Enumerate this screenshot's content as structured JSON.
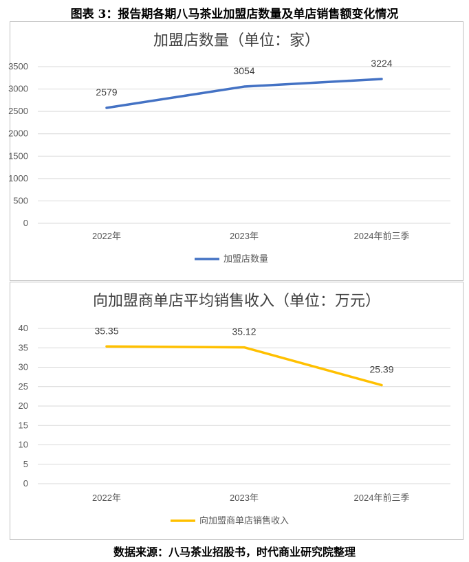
{
  "figure_title": "图表 3：报告期各期八马茶业加盟店数量及单店销售额变化情况",
  "source": "数据来源：八马茶业招股书，时代商业研究院整理",
  "chart_data": [
    {
      "type": "line",
      "title": "加盟店数量（单位：家）",
      "categories": [
        "2022年",
        "2023年",
        "2024年前三季"
      ],
      "series": [
        {
          "name": "加盟店数量",
          "values": [
            2579,
            3054,
            3224
          ],
          "color": "#4472C4"
        }
      ],
      "data_labels": [
        "2579",
        "3054",
        "3224"
      ],
      "ylim": [
        0,
        3500
      ],
      "yticks": [
        0,
        500,
        1000,
        1500,
        2000,
        2500,
        3000,
        3500
      ],
      "grid": true,
      "legend": "bottom"
    },
    {
      "type": "line",
      "title": "向加盟商单店平均销售收入（单位：万元）",
      "categories": [
        "2022年",
        "2023年",
        "2024年前三季"
      ],
      "series": [
        {
          "name": "向加盟商单店销售收入",
          "values": [
            35.35,
            35.12,
            25.39
          ],
          "color": "#FFC000"
        }
      ],
      "data_labels": [
        "35.35",
        "35.12",
        "25.39"
      ],
      "ylim": [
        0,
        40
      ],
      "yticks": [
        0,
        5,
        10,
        15,
        20,
        25,
        30,
        35,
        40
      ],
      "grid": true,
      "legend": "bottom"
    }
  ]
}
